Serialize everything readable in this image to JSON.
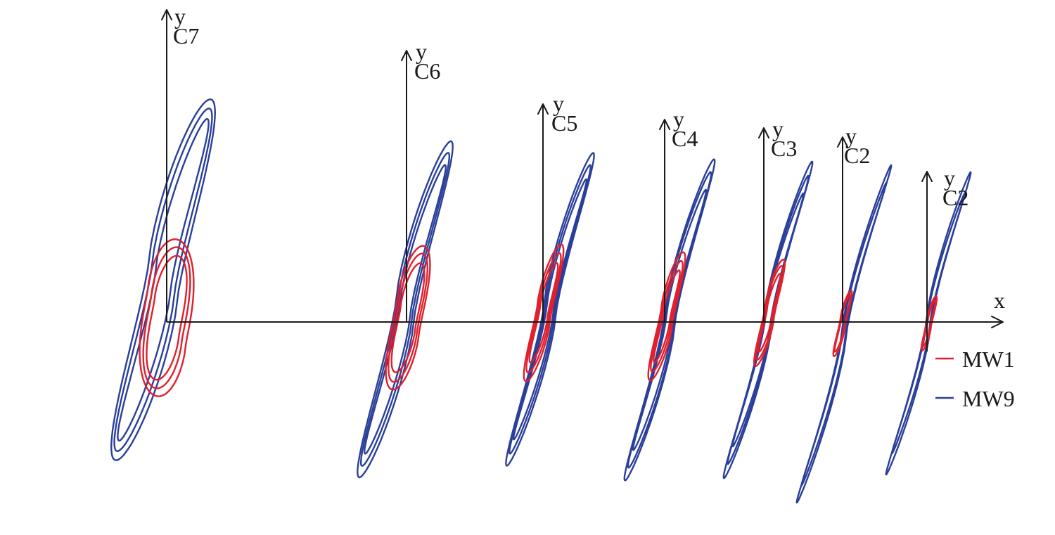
{
  "chart_data": {
    "type": "line",
    "x_axis_label": "x",
    "panel_axis_label": "y",
    "panels": [
      {
        "label": "C7"
      },
      {
        "label": "C6"
      },
      {
        "label": "C5"
      },
      {
        "label": "C4"
      },
      {
        "label": "C3"
      },
      {
        "label": "C2"
      },
      {
        "label": "C2"
      }
    ],
    "series": [
      {
        "name": "MW1",
        "color": "#e0202c"
      },
      {
        "name": "MW9",
        "color": "#2a3f9a"
      }
    ],
    "legend_position": "right"
  }
}
